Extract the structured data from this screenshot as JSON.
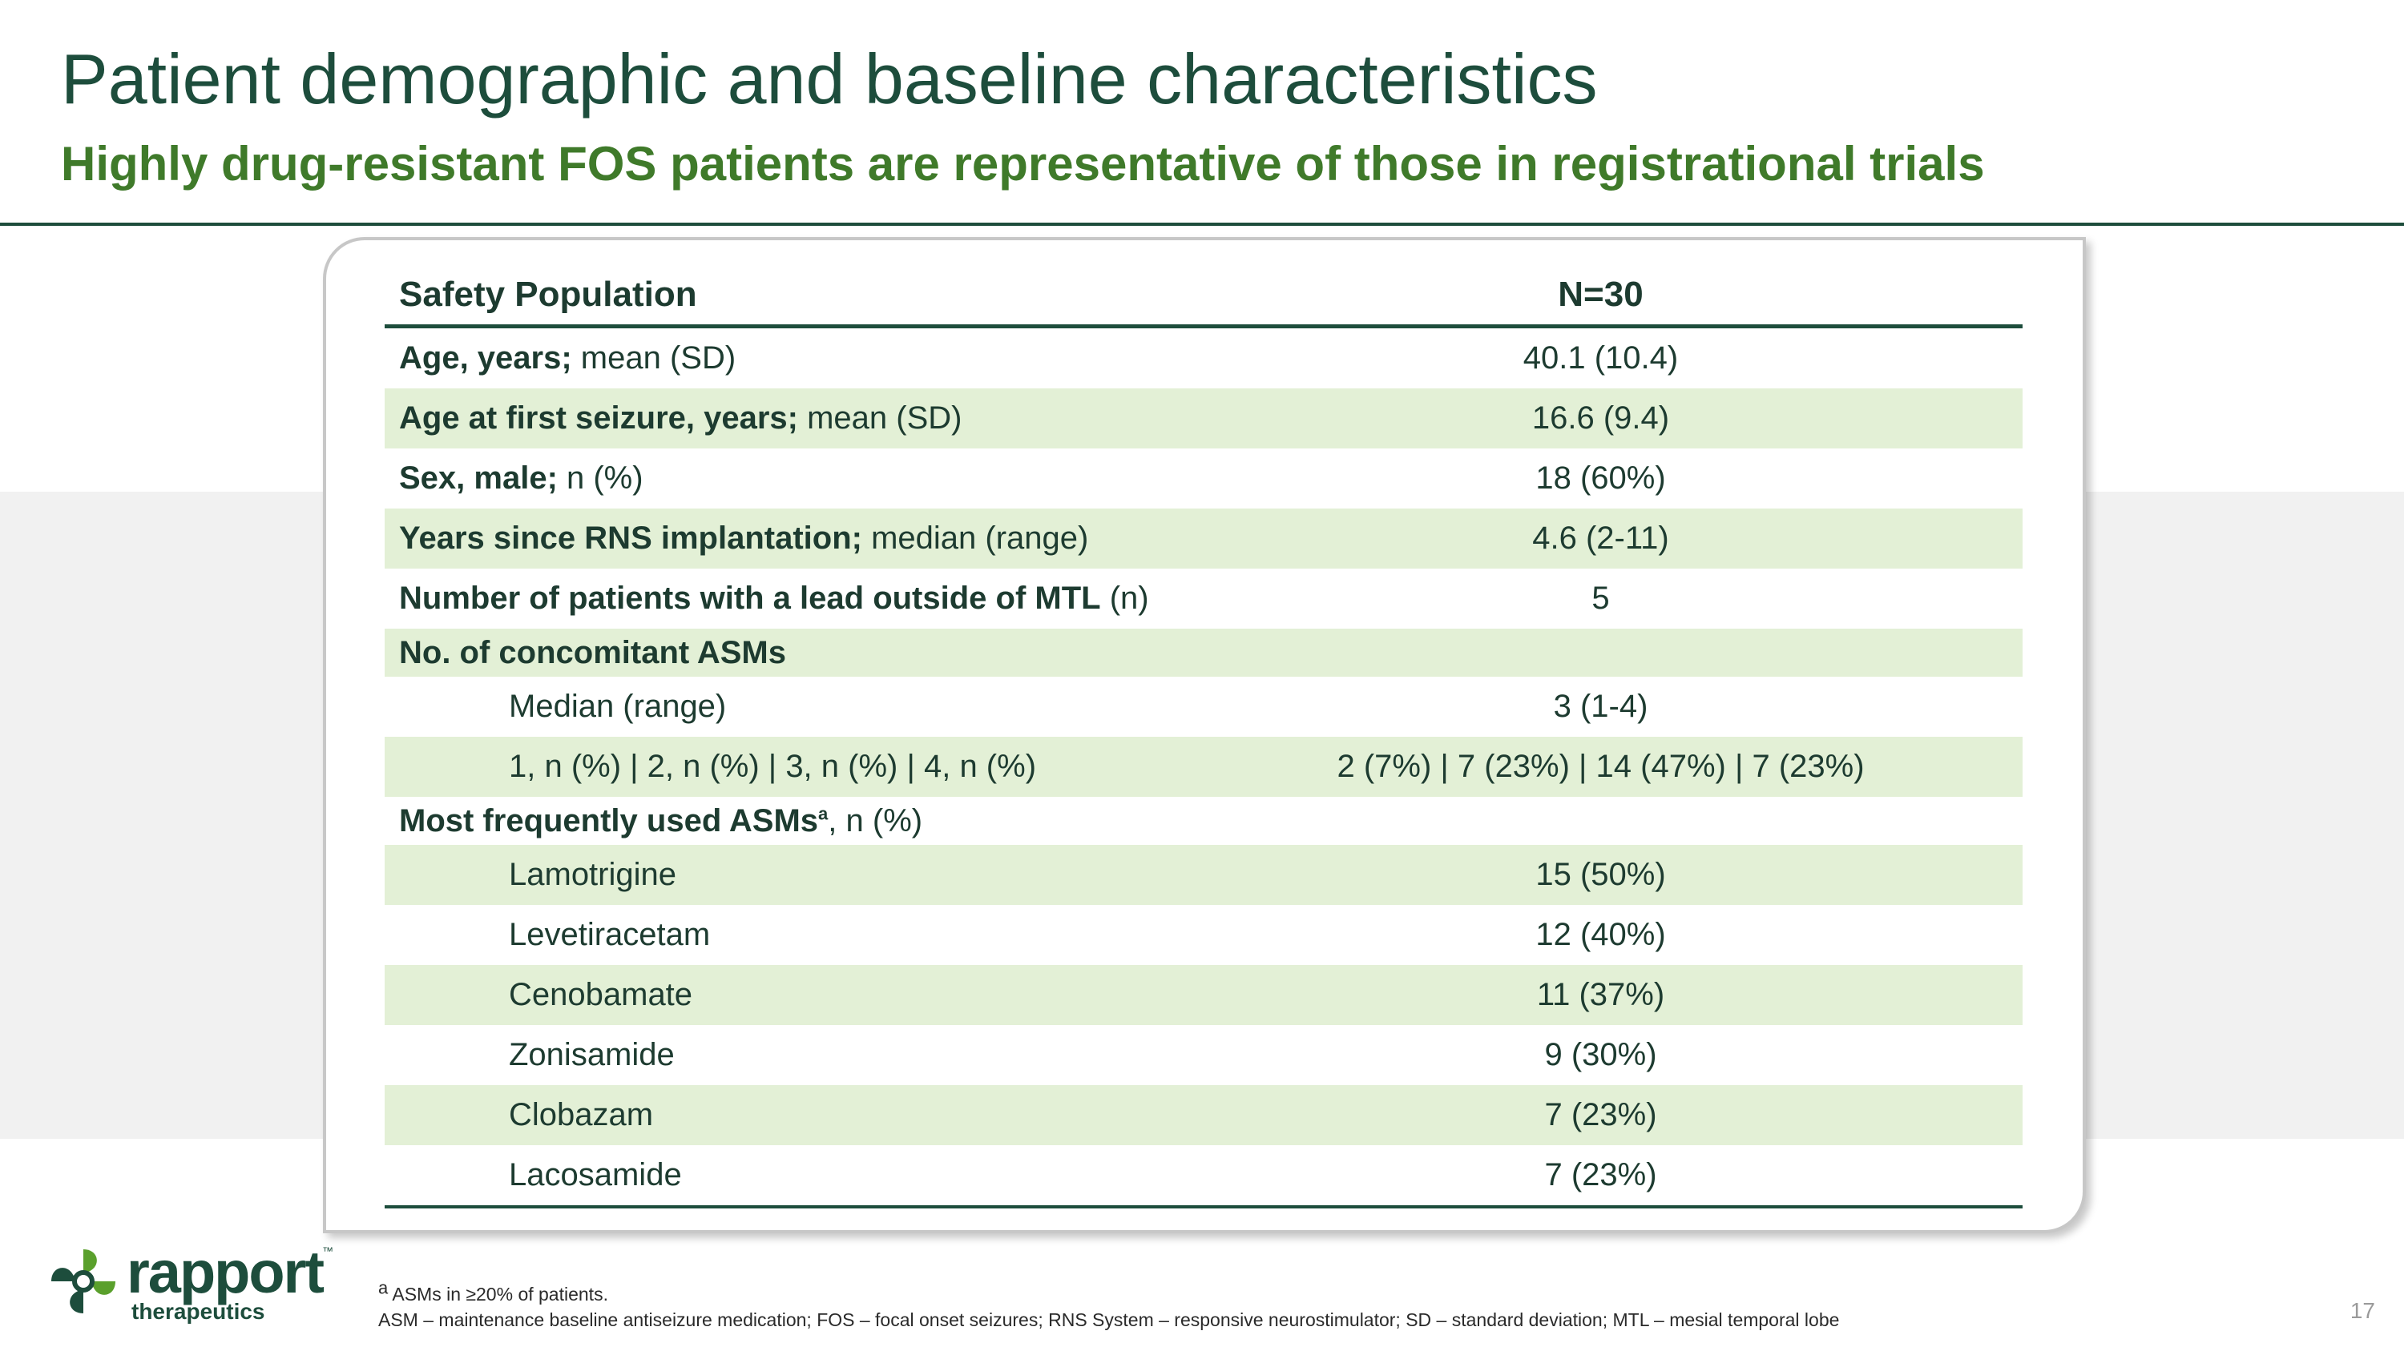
{
  "header": {
    "title": "Patient demographic and baseline characteristics",
    "subtitle": "Highly drug-resistant FOS patients are representative of those in registrational trials"
  },
  "table": {
    "col1_header": "Safety Population",
    "col2_header": "N=30",
    "rows": [
      {
        "bold": "Age, years;",
        "rest": " mean (SD)",
        "value": "40.1 (10.4)"
      },
      {
        "bold": "Age at first seizure, years;",
        "rest": " mean (SD)",
        "value": "16.6 (9.4)"
      },
      {
        "bold": "Sex, male;",
        "rest": " n (%)",
        "value": "18 (60%)"
      },
      {
        "bold": "Years since RNS implantation;",
        "rest": " median (range)",
        "value": "4.6 (2-11)"
      },
      {
        "bold": "Number of patients with a lead outside of MTL",
        "rest": " (n)",
        "value": "5"
      },
      {
        "bold": "No. of concomitant ASMs",
        "rest": "",
        "value": ""
      },
      {
        "label": "Median (range)",
        "value": "3 (1-4)"
      },
      {
        "label": "1, n (%) | 2, n (%) | 3, n (%) | 4, n (%)",
        "value": "2 (7%) | 7 (23%) | 14 (47%) | 7 (23%)"
      },
      {
        "bold": "Most frequently used ASMs",
        "sup": "a",
        "rest": ", n (%)",
        "value": ""
      },
      {
        "label": "Lamotrigine",
        "value": "15 (50%)"
      },
      {
        "label": "Levetiracetam",
        "value": "12 (40%)"
      },
      {
        "label": "Cenobamate",
        "value": "11 (37%)"
      },
      {
        "label": "Zonisamide",
        "value": "9 (30%)"
      },
      {
        "label": "Clobazam",
        "value": "7 (23%)"
      },
      {
        "label": "Lacosamide",
        "value": "7 (23%)"
      }
    ]
  },
  "footnotes": {
    "note_a_sup": "a",
    "note_a": " ASMs in ≥20% of patients.",
    "abbreviations": "ASM – maintenance baseline antiseizure medication; FOS – focal onset seizures; RNS System – responsive neurostimulator; SD – standard deviation; MTL – mesial temporal lobe"
  },
  "logo": {
    "word": "rapport",
    "sub": "therapeutics",
    "tm": "™",
    "colors": {
      "dark": "#1d4d3c",
      "green": "#5aa02c"
    }
  },
  "page_number": "17"
}
